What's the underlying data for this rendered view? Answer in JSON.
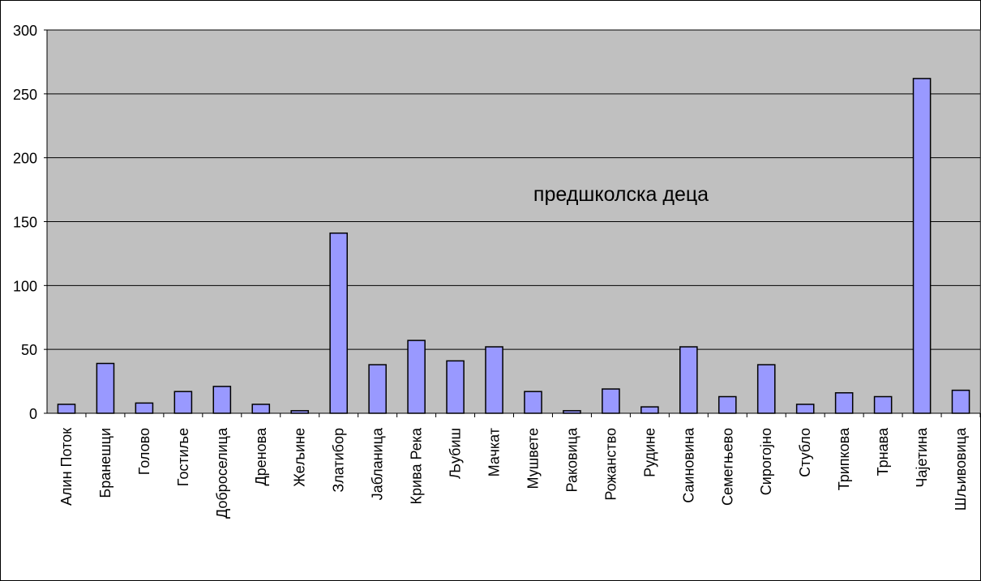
{
  "chart_data": {
    "type": "bar",
    "annotation": "предшколска деца",
    "categories": [
      "Алин Поток",
      "Бранешци",
      "Голово",
      "Гостиље",
      "Доброселица",
      "Дренова",
      "Жељине",
      "Златибор",
      "Јабланица",
      "Крива Река",
      "Љубиш",
      "Мачкат",
      "Мушвете",
      "Раковица",
      "Рожанство",
      "Рудине",
      "Саиновина",
      "Семегњево",
      "Сирогојно",
      "Стубло",
      "Трипкова",
      "Трнава",
      "Чајетина",
      "Шљивовица"
    ],
    "values": [
      7,
      39,
      8,
      17,
      21,
      7,
      2,
      141,
      38,
      57,
      41,
      52,
      17,
      2,
      19,
      5,
      52,
      13,
      38,
      7,
      16,
      13,
      262,
      18
    ],
    "ylim": [
      0,
      300
    ],
    "yticks": [
      0,
      50,
      100,
      150,
      200,
      250,
      300
    ],
    "grid": true,
    "colors": {
      "plot_background": "#c0c0c0",
      "bar_fill": "#9999ff",
      "bar_stroke": "#000000",
      "grid": "#000000"
    }
  }
}
